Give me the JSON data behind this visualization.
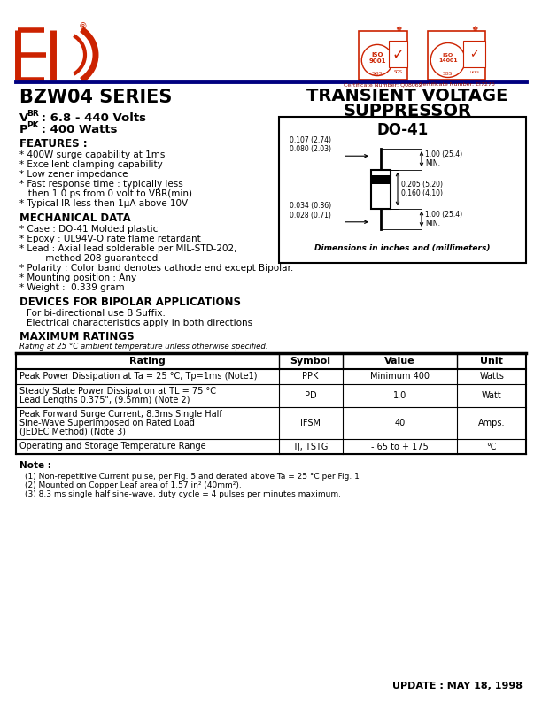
{
  "title": "BZW04 SERIES",
  "eic_logo_color": "#CC2200",
  "header_line_color": "#000080",
  "vbr_value": " : 6.8 - 440 Volts",
  "ppk_value": " : 400 Watts",
  "features_title": "FEATURES :",
  "mech_title": "MECHANICAL DATA",
  "bipolar_title": "DEVICES FOR BIPOLAR APPLICATIONS",
  "max_ratings_title": "MAXIMUM RATINGS",
  "max_ratings_note": "Rating at 25 °C ambient temperature unless otherwise specified.",
  "table_headers": [
    "Rating",
    "Symbol",
    "Value",
    "Unit"
  ],
  "table_rows": [
    [
      "Peak Power Dissipation at Ta = 25 °C, Tp=1ms (Note1)",
      "PPK",
      "Minimum 400",
      "Watts"
    ],
    [
      "Steady State Power Dissipation at TL = 75 °C\nLead Lengths 0.375\", (9.5mm) (Note 2)",
      "PD",
      "1.0",
      "Watt"
    ],
    [
      "Peak Forward Surge Current, 8.3ms Single Half\nSine-Wave Superimposed on Rated Load\n(JEDEC Method) (Note 3)",
      "IFSM",
      "40",
      "Amps."
    ],
    [
      "Operating and Storage Temperature Range",
      "TJ, TSTG",
      "- 65 to + 175",
      "°C"
    ]
  ],
  "notes_title": "Note :",
  "notes": [
    "(1) Non-repetitive Current pulse, per Fig. 5 and derated above Ta = 25 °C per Fig. 1",
    "(2) Mounted on Copper Leaf area of 1.57 in² (40mm²).",
    "(3) 8.3 ms single half sine-wave, duty cycle = 4 pulses per minutes maximum."
  ],
  "update_text": "UPDATE : MAY 18, 1998",
  "do41_label": "DO-41",
  "dim_text": "Dimensions in inches and (millimeters)",
  "background": "#FFFFFF"
}
